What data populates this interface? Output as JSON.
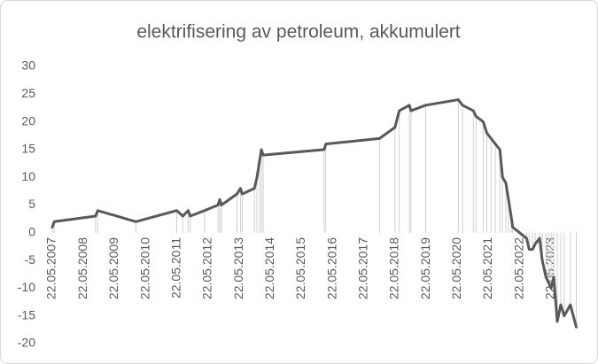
{
  "chart_data": {
    "type": "line",
    "title": "elektrifisering av petroleum, akkumulert",
    "series": [
      {
        "name": null,
        "color": "#595959",
        "x": [
          "2007-05-22",
          "2007-06-15",
          "2008-10-10",
          "2008-11-05",
          "2010-01-25",
          "2011-05-20",
          "2011-07-30",
          "2011-10-01",
          "2011-10-25",
          "2012-04-10",
          "2012-09-15",
          "2012-10-05",
          "2012-10-25",
          "2013-04-25",
          "2013-06-05",
          "2013-06-25",
          "2013-11-15",
          "2013-12-15",
          "2014-01-15",
          "2014-02-05",
          "2014-02-25",
          "2016-02-10",
          "2016-03-01",
          "2017-11-20",
          "2018-05-20",
          "2018-07-10",
          "2018-11-05",
          "2018-11-25",
          "2019-05-15",
          "2020-06-01",
          "2020-07-20",
          "2020-11-25",
          "2020-12-25",
          "2021-03-20",
          "2021-05-01",
          "2021-06-20",
          "2021-08-10",
          "2021-10-01",
          "2021-11-01",
          "2021-12-10",
          "2022-01-10",
          "2022-02-10",
          "2022-03-01",
          "2022-08-10",
          "2022-09-10",
          "2022-10-20",
          "2022-11-20",
          "2023-01-10",
          "2023-02-10",
          "2023-03-25",
          "2023-04-25",
          "2023-05-25",
          "2023-06-25",
          "2023-08-05",
          "2023-09-15",
          "2023-10-25",
          "2024-01-05",
          "2024-03-15"
        ],
        "values": [
          1,
          2,
          3,
          4,
          2,
          4,
          3,
          4,
          3,
          4,
          5,
          6,
          5,
          7,
          8,
          7,
          8,
          10,
          13,
          15,
          14,
          15,
          16,
          17,
          19,
          22,
          23,
          22,
          23,
          24,
          23,
          22,
          21,
          20,
          18,
          17,
          16,
          15,
          10,
          9,
          6,
          3,
          1,
          -1,
          -3,
          -3,
          -2,
          -1,
          -5,
          -8,
          -9,
          -10,
          -8,
          -16,
          -13,
          -15,
          -13,
          -17
        ]
      }
    ],
    "xlim": [
      "2007-05-22",
      "2024-03-20"
    ],
    "xticks": [
      {
        "value": "2007-05-22",
        "label": "22.05.2007"
      },
      {
        "value": "2008-05-22",
        "label": "22.05.2008"
      },
      {
        "value": "2009-05-22",
        "label": "22.05.2009"
      },
      {
        "value": "2010-05-22",
        "label": "22.05.2010"
      },
      {
        "value": "2011-05-22",
        "label": "22.05.2011"
      },
      {
        "value": "2012-05-22",
        "label": "22.05.2012"
      },
      {
        "value": "2013-05-22",
        "label": "22.05.2013"
      },
      {
        "value": "2014-05-22",
        "label": "22.05.2014"
      },
      {
        "value": "2015-05-22",
        "label": "22.05.2015"
      },
      {
        "value": "2016-05-22",
        "label": "22.05.2016"
      },
      {
        "value": "2017-05-22",
        "label": "22.05.2017"
      },
      {
        "value": "2018-05-22",
        "label": "22.05.2018"
      },
      {
        "value": "2019-05-22",
        "label": "22.05.2019"
      },
      {
        "value": "2020-05-22",
        "label": "22.05.2020"
      },
      {
        "value": "2021-05-22",
        "label": "22.05.2021"
      },
      {
        "value": "2022-05-22",
        "label": "22.05.2022"
      },
      {
        "value": "2023-05-22",
        "label": "22.05.2023"
      }
    ],
    "ylim": [
      -20,
      30
    ],
    "yticks": [
      -20,
      -15,
      -10,
      -5,
      0,
      5,
      10,
      15,
      20,
      25,
      30
    ],
    "grid": false,
    "drop_lines": true
  }
}
